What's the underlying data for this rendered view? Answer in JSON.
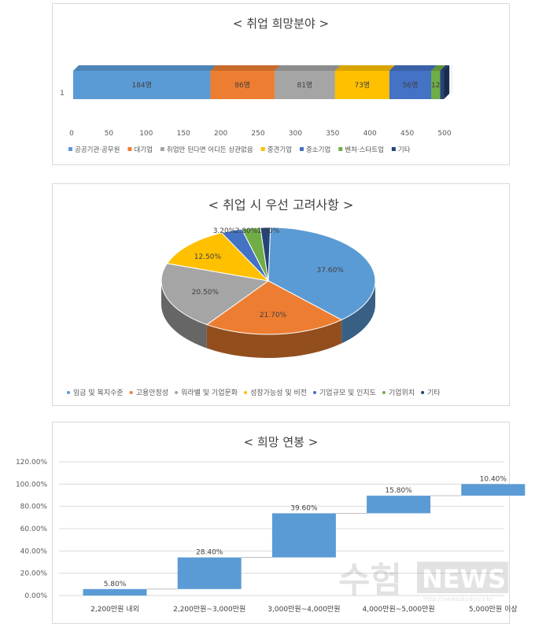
{
  "chart_data": [
    {
      "type": "bar",
      "stacked": true,
      "orientation": "horizontal",
      "title": "< 취업 희망분야 >",
      "categories": [
        "1"
      ],
      "xlim": [
        0,
        500
      ],
      "xticks": [
        "0",
        "50",
        "100",
        "150",
        "200",
        "250",
        "300",
        "350",
        "400",
        "450",
        "500"
      ],
      "legend_position": "bottom",
      "series": [
        {
          "name": "공공기관·공무원",
          "value": 184,
          "label": "184명",
          "color": "#5b9bd5"
        },
        {
          "name": "대기업",
          "value": 86,
          "label": "86명",
          "color": "#ed7d31"
        },
        {
          "name": "취업만 된다면 어디든 상관없음",
          "value": 81,
          "label": "81명",
          "color": "#a5a5a5"
        },
        {
          "name": "중견기업",
          "value": 73,
          "label": "73명",
          "color": "#ffc000"
        },
        {
          "name": "중소기업",
          "value": 56,
          "label": "56명",
          "color": "#4472c4"
        },
        {
          "name": "벤처·스타트업",
          "value": 12,
          "label": "12",
          "color": "#70ad47"
        },
        {
          "name": "기타",
          "value": 5,
          "label": "",
          "color": "#264478"
        }
      ]
    },
    {
      "type": "pie",
      "three_d": true,
      "title": "< 취업 시 우선 고려사항 >",
      "legend_position": "bottom",
      "slices": [
        {
          "name": "임금 및 복지수준",
          "value": 37.6,
          "label": "37.60%",
          "color": "#5b9bd5"
        },
        {
          "name": "고용안정성",
          "value": 21.7,
          "label": "21.70%",
          "color": "#ed7d31"
        },
        {
          "name": "워라밸 및 기업문화",
          "value": 20.5,
          "label": "20.50%",
          "color": "#a5a5a5"
        },
        {
          "name": "성장가능성 및 비전",
          "value": 12.5,
          "label": "12.50%",
          "color": "#ffc000"
        },
        {
          "name": "기업규모 및 인지도",
          "value": 3.2,
          "label": "3.20%",
          "color": "#4472c4"
        },
        {
          "name": "기업위치",
          "value": 2.8,
          "label": "2.80%",
          "color": "#70ad47"
        },
        {
          "name": "기타",
          "value": 1.5,
          "label": "1.50%",
          "color": "#264478"
        }
      ]
    },
    {
      "type": "bar",
      "subtype": "waterfall",
      "title": "< 희망 연봉 >",
      "ylim": [
        0,
        120
      ],
      "yticks": [
        "0.00%",
        "20.00%",
        "40.00%",
        "60.00%",
        "80.00%",
        "100.00%",
        "120.00%"
      ],
      "grid": true,
      "categories": [
        "2,200만원 내외",
        "2,200만원~3,000만원",
        "3,000만원~4,000만원",
        "4,000만원~5,000만원",
        "5,000만원 이상"
      ],
      "values": [
        5.8,
        28.4,
        39.6,
        15.8,
        10.4
      ],
      "labels": [
        "5.80%",
        "28.40%",
        "39.60%",
        "15.80%",
        "10.40%"
      ],
      "color": "#5b9bd5"
    }
  ],
  "watermark": {
    "korean": "수험",
    "english": "NEWS",
    "url": "http://newsstudy.co.kr"
  }
}
